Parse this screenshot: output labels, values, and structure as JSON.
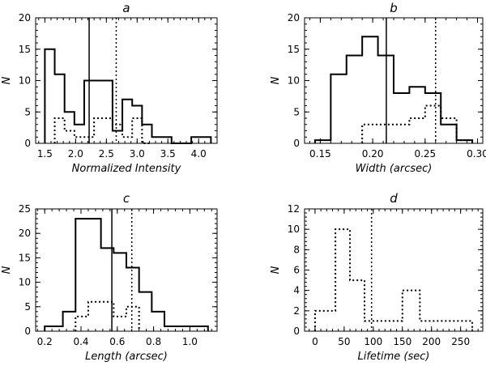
{
  "chart_data": [
    {
      "type": "histogram",
      "title": "a",
      "xlabel": "Normalized Intensity",
      "ylabel": "N",
      "xlim": [
        1.35,
        4.3
      ],
      "ylim": [
        0,
        20
      ],
      "xticks": [
        1.5,
        2.0,
        2.5,
        3.0,
        3.5,
        4.0
      ],
      "xtick_labels": [
        "1.5",
        "2.0",
        "2.5",
        "3.0",
        "3.5",
        "4.0"
      ],
      "yticks": [
        0,
        5,
        10,
        15,
        20
      ],
      "ytick_labels": [
        "0",
        "5",
        "10",
        "15",
        "20"
      ],
      "series": [
        {
          "name": "solid",
          "style": "solid",
          "bins": [
            1.5,
            1.66,
            1.82,
            1.98,
            2.14,
            2.3,
            2.6,
            2.76,
            2.92,
            3.08,
            3.24,
            3.56,
            3.88,
            4.2
          ],
          "counts": [
            15,
            11,
            5,
            3,
            10,
            10,
            2,
            7,
            6,
            3,
            1,
            0,
            1
          ]
        },
        {
          "name": "dotted",
          "style": "dotted",
          "bins": [
            1.66,
            1.82,
            1.98,
            2.3,
            2.6,
            2.76,
            2.92,
            3.08,
            3.24
          ],
          "counts": [
            4,
            2,
            1,
            4,
            3,
            1,
            4,
            0
          ]
        }
      ],
      "vlines": [
        {
          "x": 2.22,
          "style": "solid"
        },
        {
          "x": 2.66,
          "style": "dotted"
        }
      ]
    },
    {
      "type": "histogram",
      "title": "b",
      "xlabel": "Width (arcsec)",
      "ylabel": "N",
      "xlim": [
        0.135,
        0.305
      ],
      "ylim": [
        0,
        20
      ],
      "xticks": [
        0.15,
        0.2,
        0.25,
        0.3
      ],
      "xtick_labels": [
        "0.15",
        "0.20",
        "0.25",
        "0.30"
      ],
      "yticks": [
        0,
        5,
        10,
        15,
        20
      ],
      "ytick_labels": [
        "0",
        "5",
        "10",
        "15",
        "20"
      ],
      "series": [
        {
          "name": "solid",
          "style": "solid",
          "bins": [
            0.145,
            0.16,
            0.175,
            0.19,
            0.205,
            0.22,
            0.235,
            0.25,
            0.265,
            0.28,
            0.295
          ],
          "counts": [
            0.5,
            11,
            14,
            17,
            14,
            8,
            9,
            8,
            3,
            0.5
          ]
        },
        {
          "name": "dotted",
          "style": "dotted",
          "bins": [
            0.19,
            0.235,
            0.25,
            0.265,
            0.28,
            0.295
          ],
          "counts": [
            3,
            4,
            6,
            4,
            0.5
          ]
        }
      ],
      "vlines": [
        {
          "x": 0.213,
          "style": "solid"
        },
        {
          "x": 0.26,
          "style": "dotted"
        }
      ]
    },
    {
      "type": "histogram",
      "title": "c",
      "xlabel": "Length (arcsec)",
      "ylabel": "N",
      "xlim": [
        0.15,
        1.15
      ],
      "ylim": [
        0,
        25
      ],
      "xticks": [
        0.2,
        0.4,
        0.6,
        0.8,
        1.0
      ],
      "xtick_labels": [
        "0.2",
        "0.4",
        "0.6",
        "0.8",
        "1.0"
      ],
      "yticks": [
        0,
        5,
        10,
        15,
        20,
        25
      ],
      "ytick_labels": [
        "0",
        "5",
        "10",
        "15",
        "20",
        "25"
      ],
      "series": [
        {
          "name": "solid",
          "style": "solid",
          "bins": [
            0.2,
            0.3,
            0.37,
            0.44,
            0.51,
            0.58,
            0.65,
            0.72,
            0.79,
            0.86,
            0.93,
            1.1
          ],
          "counts": [
            1,
            4,
            23,
            23,
            17,
            16,
            13,
            8,
            4,
            1,
            1
          ]
        },
        {
          "name": "dotted",
          "style": "dotted",
          "bins": [
            0.37,
            0.44,
            0.51,
            0.58,
            0.65,
            0.72
          ],
          "counts": [
            3,
            6,
            6,
            3,
            5
          ]
        }
      ],
      "vlines": [
        {
          "x": 0.57,
          "style": "solid"
        },
        {
          "x": 0.68,
          "style": "dotted"
        }
      ]
    },
    {
      "type": "histogram",
      "title": "d",
      "xlabel": "Lifetime (sec)",
      "ylabel": "N",
      "xlim": [
        -18,
        288
      ],
      "ylim": [
        0,
        12
      ],
      "xticks": [
        0,
        50,
        100,
        150,
        200,
        250
      ],
      "xtick_labels": [
        "0",
        "50",
        "100",
        "150",
        "200",
        "250"
      ],
      "yticks": [
        0,
        2,
        4,
        6,
        8,
        10,
        12
      ],
      "ytick_labels": [
        "0",
        "2",
        "4",
        "6",
        "8",
        "10",
        "12"
      ],
      "series": [
        {
          "name": "dotted",
          "style": "dotted",
          "bins": [
            0,
            35,
            60,
            85,
            105,
            150,
            180,
            270
          ],
          "counts": [
            2,
            10,
            5,
            1,
            1,
            4,
            1
          ]
        }
      ],
      "vlines": [
        {
          "x": 97,
          "style": "dotted"
        }
      ]
    }
  ]
}
